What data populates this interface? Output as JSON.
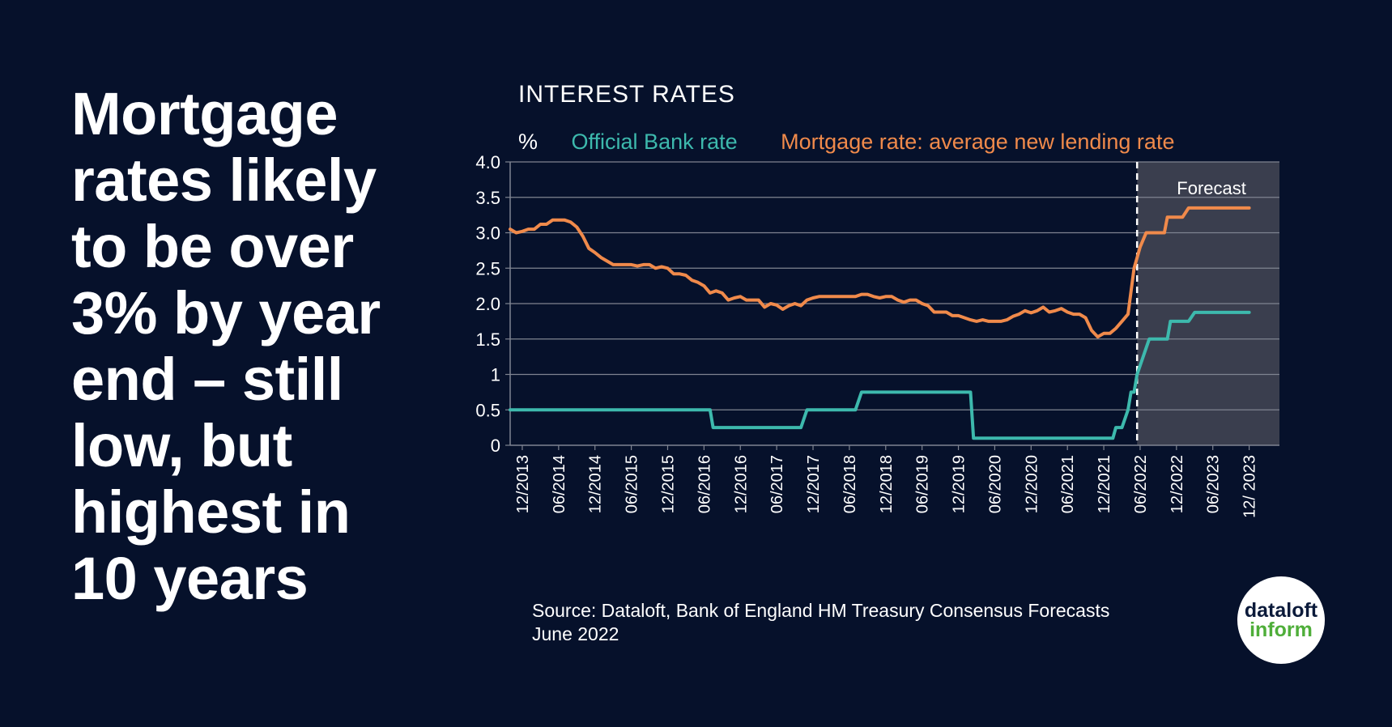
{
  "headline": "Mortgage rates likely to be over 3% by year end – still low, but highest in 10 years",
  "colors": {
    "background": "#06112b",
    "bank_rate": "#3db9ad",
    "mortgage_rate": "#f08a4b",
    "forecast_shade": "#3a3e4e",
    "grid": "#7f8491"
  },
  "legend": {
    "unit": "%",
    "bank_rate": "Official Bank rate",
    "mortgage_rate": "Mortgage rate: average new lending rate"
  },
  "source": {
    "line1": "Source: Dataloft, Bank of England HM Treasury Consensus Forecasts",
    "line2": "June 2022"
  },
  "logo": {
    "line1": "dataloft",
    "line2": "inform"
  },
  "chart_data": {
    "type": "line",
    "title": "INTEREST RATES",
    "ylabel": "%",
    "ylim": [
      0,
      4
    ],
    "xlim_months": [
      0,
      125
    ],
    "yticks": [
      {
        "value": 0,
        "label": "0"
      },
      {
        "value": 0.5,
        "label": "0.5"
      },
      {
        "value": 1,
        "label": "1"
      },
      {
        "value": 1.5,
        "label": "1.5"
      },
      {
        "value": 2,
        "label": "2.0"
      },
      {
        "value": 2.5,
        "label": "2.5"
      },
      {
        "value": 3,
        "label": "3.0"
      },
      {
        "value": 3.5,
        "label": "3.5"
      },
      {
        "value": 4,
        "label": "4.0"
      }
    ],
    "xticks": [
      {
        "m": 0,
        "label": "12/2013"
      },
      {
        "m": 6,
        "label": "06/2014"
      },
      {
        "m": 12,
        "label": "12/2014"
      },
      {
        "m": 18,
        "label": "06/2015"
      },
      {
        "m": 24,
        "label": "12/2015"
      },
      {
        "m": 30,
        "label": "06/2016"
      },
      {
        "m": 36,
        "label": "12/2016"
      },
      {
        "m": 42,
        "label": "06/2017"
      },
      {
        "m": 48,
        "label": "12/2017"
      },
      {
        "m": 54,
        "label": "06/2018"
      },
      {
        "m": 60,
        "label": "12/2018"
      },
      {
        "m": 66,
        "label": "06/2019"
      },
      {
        "m": 72,
        "label": "12/2019"
      },
      {
        "m": 78,
        "label": "06/2020"
      },
      {
        "m": 84,
        "label": "12/2020"
      },
      {
        "m": 90,
        "label": "06/2021"
      },
      {
        "m": 96,
        "label": "12/2021"
      },
      {
        "m": 102,
        "label": "06/2022"
      },
      {
        "m": 108,
        "label": "12/2022"
      },
      {
        "m": 114,
        "label": "06/2023"
      },
      {
        "m": 120,
        "label": "12/ 2023"
      }
    ],
    "forecast": {
      "start_m": 101.5,
      "label": "Forecast"
    },
    "series": [
      {
        "name": "Official Bank rate",
        "key": "bank_rate",
        "points": [
          [
            -2,
            0.5
          ],
          [
            31,
            0.5
          ],
          [
            31.5,
            0.25
          ],
          [
            46,
            0.25
          ],
          [
            47,
            0.5
          ],
          [
            55,
            0.5
          ],
          [
            56,
            0.75
          ],
          [
            74,
            0.75
          ],
          [
            74.5,
            0.1
          ],
          [
            97.5,
            0.1
          ],
          [
            98,
            0.25
          ],
          [
            99,
            0.25
          ],
          [
            100,
            0.5
          ],
          [
            100.5,
            0.75
          ],
          [
            101,
            0.75
          ],
          [
            101.5,
            1.0
          ],
          [
            102.5,
            1.25
          ],
          [
            103.5,
            1.5
          ],
          [
            106.5,
            1.5
          ],
          [
            107,
            1.75
          ],
          [
            110,
            1.75
          ],
          [
            111,
            1.875
          ],
          [
            120,
            1.875
          ]
        ]
      },
      {
        "name": "Mortgage rate: average new lending rate",
        "key": "mortgage_rate",
        "points": [
          [
            -2,
            3.05
          ],
          [
            -1,
            3.0
          ],
          [
            0,
            3.02
          ],
          [
            1,
            3.05
          ],
          [
            2,
            3.05
          ],
          [
            3,
            3.12
          ],
          [
            4,
            3.12
          ],
          [
            5,
            3.18
          ],
          [
            6,
            3.18
          ],
          [
            7,
            3.18
          ],
          [
            8,
            3.15
          ],
          [
            9,
            3.08
          ],
          [
            10,
            2.95
          ],
          [
            11,
            2.78
          ],
          [
            12,
            2.72
          ],
          [
            13,
            2.65
          ],
          [
            14,
            2.6
          ],
          [
            15,
            2.55
          ],
          [
            16,
            2.55
          ],
          [
            17,
            2.55
          ],
          [
            18,
            2.55
          ],
          [
            19,
            2.53
          ],
          [
            20,
            2.55
          ],
          [
            21,
            2.55
          ],
          [
            22,
            2.5
          ],
          [
            23,
            2.52
          ],
          [
            24,
            2.5
          ],
          [
            25,
            2.42
          ],
          [
            26,
            2.42
          ],
          [
            27,
            2.4
          ],
          [
            28,
            2.33
          ],
          [
            29,
            2.3
          ],
          [
            30,
            2.25
          ],
          [
            31,
            2.15
          ],
          [
            32,
            2.18
          ],
          [
            33,
            2.15
          ],
          [
            34,
            2.05
          ],
          [
            35,
            2.08
          ],
          [
            36,
            2.1
          ],
          [
            37,
            2.05
          ],
          [
            38,
            2.05
          ],
          [
            39,
            2.05
          ],
          [
            40,
            1.95
          ],
          [
            41,
            2.0
          ],
          [
            42,
            1.98
          ],
          [
            43,
            1.92
          ],
          [
            44,
            1.97
          ],
          [
            45,
            2.0
          ],
          [
            46,
            1.97
          ],
          [
            47,
            2.05
          ],
          [
            48,
            2.08
          ],
          [
            49,
            2.1
          ],
          [
            50,
            2.1
          ],
          [
            51,
            2.1
          ],
          [
            52,
            2.1
          ],
          [
            53,
            2.1
          ],
          [
            54,
            2.1
          ],
          [
            55,
            2.1
          ],
          [
            56,
            2.13
          ],
          [
            57,
            2.13
          ],
          [
            58,
            2.1
          ],
          [
            59,
            2.08
          ],
          [
            60,
            2.1
          ],
          [
            61,
            2.1
          ],
          [
            62,
            2.05
          ],
          [
            63,
            2.02
          ],
          [
            64,
            2.05
          ],
          [
            65,
            2.05
          ],
          [
            66,
            2.0
          ],
          [
            67,
            1.97
          ],
          [
            68,
            1.88
          ],
          [
            69,
            1.88
          ],
          [
            70,
            1.88
          ],
          [
            71,
            1.83
          ],
          [
            72,
            1.83
          ],
          [
            73,
            1.8
          ],
          [
            74,
            1.77
          ],
          [
            75,
            1.75
          ],
          [
            76,
            1.77
          ],
          [
            77,
            1.75
          ],
          [
            78,
            1.75
          ],
          [
            79,
            1.75
          ],
          [
            80,
            1.77
          ],
          [
            81,
            1.82
          ],
          [
            82,
            1.85
          ],
          [
            83,
            1.9
          ],
          [
            84,
            1.87
          ],
          [
            85,
            1.9
          ],
          [
            86,
            1.95
          ],
          [
            87,
            1.88
          ],
          [
            88,
            1.9
          ],
          [
            89,
            1.93
          ],
          [
            90,
            1.88
          ],
          [
            91,
            1.85
          ],
          [
            92,
            1.85
          ],
          [
            93,
            1.8
          ],
          [
            94,
            1.62
          ],
          [
            95,
            1.53
          ],
          [
            96,
            1.58
          ],
          [
            97,
            1.58
          ],
          [
            98,
            1.65
          ],
          [
            99,
            1.75
          ],
          [
            100,
            1.85
          ],
          [
            101,
            2.5
          ],
          [
            102,
            2.8
          ],
          [
            103,
            3.0
          ],
          [
            106,
            3.0
          ],
          [
            106.5,
            3.22
          ],
          [
            109,
            3.22
          ],
          [
            110,
            3.35
          ],
          [
            120,
            3.35
          ]
        ]
      }
    ]
  }
}
